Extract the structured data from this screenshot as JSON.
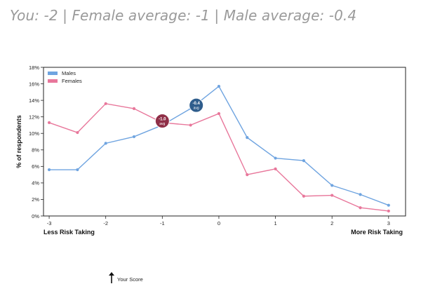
{
  "header": {
    "you_text": "You: -2",
    "sep1": " | ",
    "female_avg_text": "Female average: -1",
    "sep2": " | ",
    "male_avg_text": "Male average: -0.4"
  },
  "score_marker": {
    "label": "Your Score",
    "value": -2,
    "icon": "up-arrow-icon"
  },
  "colors": {
    "males": "#6fa4e0",
    "females": "#e8779b",
    "male_avg_bubble": "#2f5d8c",
    "female_avg_bubble": "#8f2f47"
  },
  "chart_data": {
    "type": "line",
    "title": "",
    "xlabel_left": "Less Risk Taking",
    "xlabel_right": "More Risk Taking",
    "ylabel": "% of respondents",
    "x": [
      -3,
      -2.5,
      -2,
      -1.5,
      -1,
      -0.5,
      0,
      0.5,
      1,
      1.5,
      2,
      2.5,
      3
    ],
    "xlim": [
      -3.1,
      3.3
    ],
    "ylim": [
      0,
      18
    ],
    "x_ticks": [
      -3,
      -2,
      -1,
      0,
      1,
      2,
      3
    ],
    "x_tick_labels": [
      "-3",
      "-2",
      "-1",
      "0",
      "1",
      "2",
      "3"
    ],
    "y_ticks": [
      0,
      2,
      4,
      6,
      8,
      10,
      12,
      14,
      16,
      18
    ],
    "y_tick_labels": [
      "0%",
      "2%",
      "4%",
      "6%",
      "8%",
      "10%",
      "12%",
      "14%",
      "16%",
      "18%"
    ],
    "legend_position": "top-left",
    "series": [
      {
        "name": "Males",
        "values": [
          5.6,
          5.6,
          8.8,
          9.6,
          11.0,
          13.0,
          15.7,
          9.5,
          7.0,
          6.7,
          3.7,
          2.6,
          1.3
        ]
      },
      {
        "name": "Females",
        "values": [
          11.3,
          10.1,
          13.6,
          13.0,
          11.3,
          11.0,
          12.4,
          5.0,
          5.7,
          2.4,
          2.5,
          1.0,
          0.6
        ]
      }
    ],
    "annotations": [
      {
        "series": "Males",
        "x": -0.4,
        "y": 13.4,
        "line1": "-0.4",
        "line2": "avg"
      },
      {
        "series": "Females",
        "x": -1.0,
        "y": 11.5,
        "line1": "-1.0",
        "line2": "avg"
      }
    ]
  }
}
